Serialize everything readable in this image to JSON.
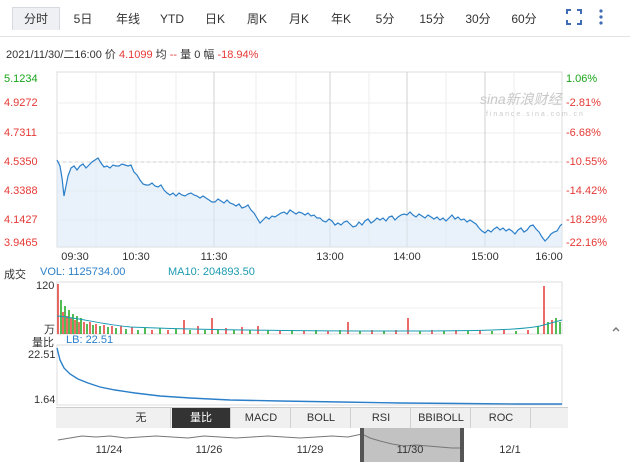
{
  "tabs": [
    "分时",
    "5日",
    "年线",
    "YTD",
    "日K",
    "周K",
    "月K",
    "年K",
    "5分",
    "15分",
    "30分",
    "60分"
  ],
  "toolbar": {
    "expand_icon": "expand-icon",
    "more_icon": "more-vert-icon"
  },
  "info": {
    "datetime": "2021/11/30/二16:00",
    "price_label": "价",
    "price": "4.1099",
    "avg_label": "均",
    "avg": "--",
    "vol_label": "量",
    "vol": "0",
    "chg_label": "幅",
    "chg": "-18.94%"
  },
  "price_axis": [
    "5.1234",
    "4.9272",
    "4.7311",
    "4.5350",
    "4.3388",
    "4.1427",
    "3.9465"
  ],
  "pct_axis": [
    "1.06%",
    "-2.81%",
    "-6.68%",
    "-10.55%",
    "-14.42%",
    "-18.29%",
    "-22.16%"
  ],
  "time_axis": [
    "09:30",
    "10:30",
    "11:30",
    "13:00",
    "14:00",
    "15:00",
    "16:00"
  ],
  "watermark": {
    "brand": "sina新浪财经",
    "url": "f i n a n c e . s i n a . c o m . c n"
  },
  "volume": {
    "label": "成交",
    "vol_text": "VOL: 1125734.00",
    "ma_text": "MA10: 204893.50",
    "axis_top": "120",
    "axis_unit": "万"
  },
  "ratio": {
    "label": "量比",
    "lb_text": "LB: 22.51",
    "axis_top": "22.51",
    "axis_bottom": "1.64"
  },
  "indicators": [
    "无",
    "量比",
    "MACD",
    "BOLL",
    "RSI",
    "BBIBOLL",
    "ROC"
  ],
  "active_indicator": "量比",
  "nav_dates": [
    "11/24",
    "11/26",
    "11/29",
    "11/30",
    "12/1"
  ],
  "colors": {
    "up": "#e53935",
    "down": "#1aa51a",
    "line": "#2b7fc9",
    "ma": "#1b9bb0"
  }
}
